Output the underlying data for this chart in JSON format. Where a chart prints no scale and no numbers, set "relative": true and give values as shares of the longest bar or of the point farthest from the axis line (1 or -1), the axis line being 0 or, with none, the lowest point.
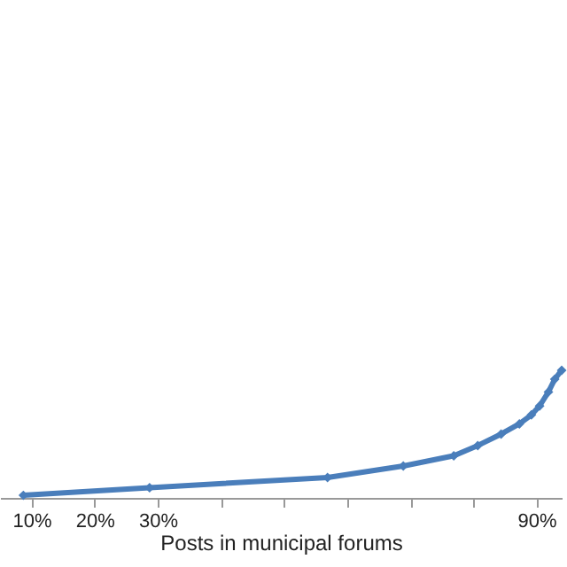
{
  "chart_data": {
    "type": "line",
    "xlabel": "Posts in municipal forums",
    "relative": true,
    "x": [
      8.7,
      28.7,
      56.9,
      68.9,
      76.9,
      80.7,
      84.4,
      87.3,
      89.2,
      90.5,
      91.9,
      92.9,
      94.0
    ],
    "series": [
      {
        "color": "#4a7ebb",
        "values": [
          0.02,
          0.08,
          0.16,
          0.25,
          0.33,
          0.41,
          0.5,
          0.58,
          0.65,
          0.72,
          0.83,
          0.93,
          1.0
        ]
      }
    ],
    "xlim": [
      5,
      94
    ],
    "xticks": [
      {
        "value": 10,
        "label": "10%"
      },
      {
        "value": 20,
        "label": "20%"
      },
      {
        "value": 30,
        "label": "30%"
      },
      {
        "value": 40,
        "label": null
      },
      {
        "value": 50,
        "label": null
      },
      {
        "value": 60,
        "label": null
      },
      {
        "value": 70,
        "label": null
      },
      {
        "value": 80,
        "label": null
      },
      {
        "value": 90,
        "label": "90%"
      }
    ],
    "marker": "diamond",
    "line_style": "solid"
  }
}
